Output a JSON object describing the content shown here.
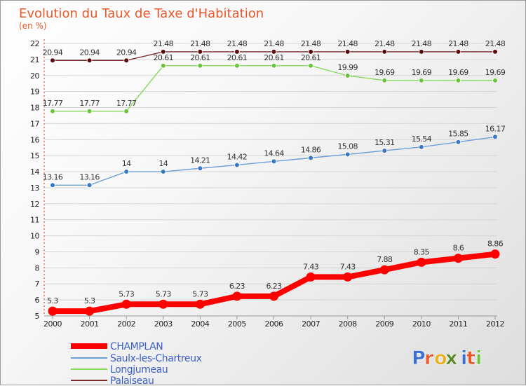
{
  "chart_data": {
    "type": "line",
    "title": "Evolution du Taux de Taxe d'Habitation",
    "subtitle": "(en %)",
    "xlabel": "",
    "ylabel": "",
    "x": [
      "2000",
      "2001",
      "2002",
      "2003",
      "2004",
      "2005",
      "2006",
      "2007",
      "2008",
      "2009",
      "2010",
      "2011",
      "2012"
    ],
    "ylim": [
      5,
      22
    ],
    "yticks": [
      5,
      6,
      7,
      8,
      9,
      10,
      11,
      12,
      13,
      14,
      15,
      16,
      17,
      18,
      19,
      20,
      21,
      22
    ],
    "grid": "horizontal",
    "legend_position": "bottom-left",
    "series": [
      {
        "name": "CHAMPLAN",
        "color": "#ff0000",
        "emphasis": "thick",
        "values": [
          5.3,
          5.3,
          5.73,
          5.73,
          5.73,
          6.23,
          6.23,
          7.43,
          7.43,
          7.88,
          8.35,
          8.6,
          8.86
        ],
        "labels": [
          "5.3",
          "5.3",
          "5.73",
          "5.73",
          "5.73",
          "6.23",
          "6.23",
          "7.43",
          "7.43",
          "7.88",
          "8.35",
          "8.6",
          "8.86"
        ]
      },
      {
        "name": "Saulx-les-Chartreux",
        "color": "#6c9fd8",
        "marker_color": "#3a78c4",
        "values": [
          13.16,
          13.16,
          14,
          14,
          14.21,
          14.42,
          14.64,
          14.86,
          15.08,
          15.31,
          15.54,
          15.85,
          16.17
        ],
        "labels": [
          "13.16",
          "13.16",
          "14",
          "14",
          "14.21",
          "14.42",
          "14.64",
          "14.86",
          "15.08",
          "15.31",
          "15.54",
          "15.85",
          "16.17"
        ]
      },
      {
        "name": "Longjumeau",
        "color": "#88d85c",
        "marker_color": "#6cc43c",
        "values": [
          17.77,
          17.77,
          17.77,
          20.61,
          20.61,
          20.61,
          20.61,
          20.61,
          19.99,
          19.69,
          19.69,
          19.69,
          19.69
        ],
        "labels": [
          "17.77",
          "17.77",
          "17.77",
          "20.61",
          "20.61",
          "20.61",
          "20.61",
          "20.61",
          "19.99",
          "19.69",
          "19.69",
          "19.69",
          "19.69"
        ]
      },
      {
        "name": "Palaiseau",
        "color": "#7a2a2a",
        "marker_color": "#5a0a0a",
        "values": [
          20.94,
          20.94,
          20.94,
          21.48,
          21.48,
          21.48,
          21.48,
          21.48,
          21.48,
          21.48,
          21.48,
          21.48,
          21.48
        ],
        "labels": [
          "20.94",
          "20.94",
          "20.94",
          "21.48",
          "21.48",
          "21.48",
          "21.48",
          "21.48",
          "21.48",
          "21.48",
          "21.48",
          "21.48",
          "21.48"
        ]
      }
    ]
  },
  "logo": {
    "letters": [
      "P",
      "r",
      "o",
      "x",
      "i",
      "t",
      "i"
    ],
    "colors": [
      "#3b6fd0",
      "#e8562a",
      "#e8b020",
      "#5a8a2a",
      "#3b6fd0",
      "#e8562a",
      "#6cc43c"
    ]
  }
}
